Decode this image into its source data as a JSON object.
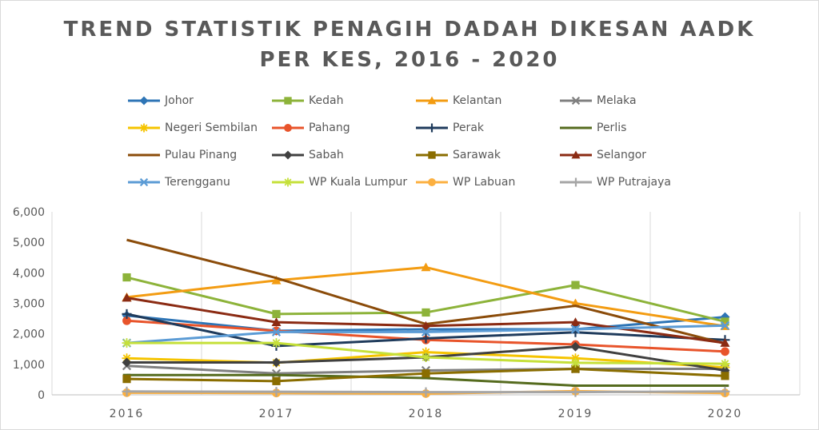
{
  "chart_data": {
    "type": "line",
    "title_lines": [
      "TREND STATISTIK PENAGIH DADAH DIKESAN AADK",
      "PER KES, 2016 - 2020"
    ],
    "x": [
      "2016",
      "2017",
      "2018",
      "2019",
      "2020"
    ],
    "ylim": [
      0,
      6000
    ],
    "y_ticks": [
      "0",
      "1,000",
      "2,000",
      "3,000",
      "4,000",
      "5,000",
      "6,000"
    ],
    "grid": "vertical",
    "legend_position": "top",
    "series": [
      {
        "name": "Johor",
        "color": "#2e75b6",
        "marker": "diamond",
        "values": [
          2600,
          2100,
          2150,
          2150,
          2550
        ]
      },
      {
        "name": "Kedah",
        "color": "#8db33a",
        "marker": "square",
        "values": [
          3850,
          2650,
          2700,
          3600,
          2400
        ]
      },
      {
        "name": "Kelantan",
        "color": "#f39c12",
        "marker": "triangle",
        "values": [
          3200,
          3750,
          4180,
          3000,
          2250
        ]
      },
      {
        "name": "Melaka",
        "color": "#808080",
        "marker": "x",
        "values": [
          950,
          700,
          800,
          850,
          850
        ]
      },
      {
        "name": "Negeri Sembilan",
        "color": "#f5c400",
        "marker": "star",
        "values": [
          1200,
          1050,
          1400,
          1200,
          900
        ]
      },
      {
        "name": "Pahang",
        "color": "#e8542b",
        "marker": "circle",
        "values": [
          2430,
          2100,
          1800,
          1650,
          1420
        ]
      },
      {
        "name": "Perak",
        "color": "#1f3b5c",
        "marker": "plus",
        "values": [
          2650,
          1600,
          1850,
          2050,
          1800
        ]
      },
      {
        "name": "Perlis",
        "color": "#556b1e",
        "marker": "dash",
        "values": [
          650,
          650,
          550,
          300,
          300
        ]
      },
      {
        "name": "Pulau Pinang",
        "color": "#8b4c0a",
        "marker": "none",
        "values": [
          5080,
          3830,
          2320,
          2920,
          1680
        ]
      },
      {
        "name": "Sabah",
        "color": "#404040",
        "marker": "diamond",
        "values": [
          1060,
          1060,
          1230,
          1580,
          800
        ]
      },
      {
        "name": "Sarawak",
        "color": "#8a6d00",
        "marker": "square",
        "values": [
          520,
          450,
          700,
          850,
          620
        ]
      },
      {
        "name": "Selangor",
        "color": "#8b2b13",
        "marker": "triangle",
        "values": [
          3180,
          2380,
          2260,
          2380,
          1700
        ]
      },
      {
        "name": "Terengganu",
        "color": "#5b9bd5",
        "marker": "x",
        "values": [
          1700,
          2060,
          2060,
          2150,
          2270
        ]
      },
      {
        "name": "WP Kuala Lumpur",
        "color": "#c5e03a",
        "marker": "star",
        "values": [
          1700,
          1700,
          1230,
          1050,
          1020
        ]
      },
      {
        "name": "WP Labuan",
        "color": "#fcb040",
        "marker": "circle",
        "values": [
          70,
          60,
          40,
          120,
          60
        ]
      },
      {
        "name": "WP Putrajaya",
        "color": "#a6a6a6",
        "marker": "plus",
        "values": [
          110,
          100,
          90,
          90,
          110
        ]
      }
    ]
  }
}
